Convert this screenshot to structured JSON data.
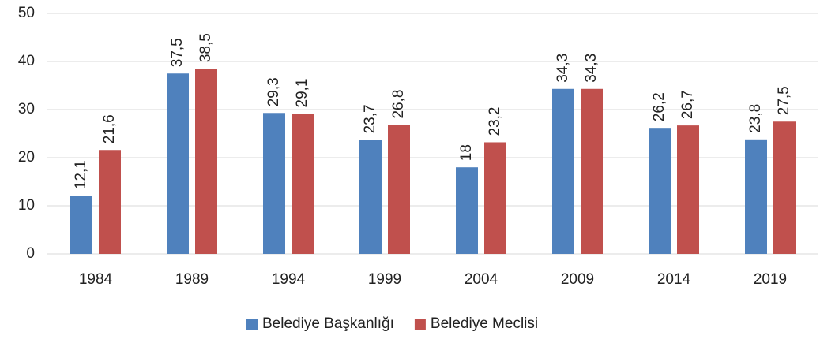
{
  "chart_data": {
    "type": "bar",
    "categories": [
      "1984",
      "1989",
      "1994",
      "1999",
      "2004",
      "2009",
      "2014",
      "2019"
    ],
    "series": [
      {
        "name": "Belediye Başkanlığı",
        "color": "#4f81bd",
        "values": [
          12.1,
          37.5,
          29.3,
          23.7,
          18,
          34.3,
          26.2,
          23.8
        ],
        "value_labels": [
          "12,1",
          "37,5",
          "29,3",
          "23,7",
          "18",
          "34,3",
          "26,2",
          "23,8"
        ]
      },
      {
        "name": "Belediye Meclisi",
        "color": "#c0504d",
        "values": [
          21.6,
          38.5,
          29.1,
          26.8,
          23.2,
          34.3,
          26.7,
          27.5
        ],
        "value_labels": [
          "21,6",
          "38,5",
          "29,1",
          "26,8",
          "23,2",
          "34,3",
          "26,7",
          "27,5"
        ]
      }
    ],
    "ylim": [
      0,
      50
    ],
    "yticks": [
      0,
      10,
      20,
      30,
      40,
      50
    ],
    "grid": true,
    "legend": "bottom"
  }
}
